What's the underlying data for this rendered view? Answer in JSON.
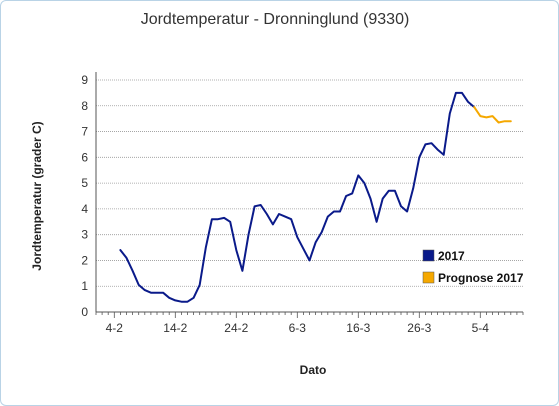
{
  "chart_data": {
    "type": "line",
    "title": "Jordtemperatur - Dronninglund (9330)",
    "xlabel": "Dato",
    "ylabel": "Jordtemperatur (grader C)",
    "ylim": [
      0,
      9
    ],
    "yticks": [
      0,
      1,
      2,
      3,
      4,
      5,
      6,
      7,
      8,
      9
    ],
    "x_tick_labels": [
      "4-2",
      "14-2",
      "24-2",
      "6-3",
      "16-3",
      "26-3",
      "5-4"
    ],
    "grid": true,
    "legend_position": "right",
    "colors": {
      "series_2017": "#0a1a8a",
      "series_prognose": "#f5a800",
      "grid": "#999999",
      "axis": "#555555",
      "frame": "#b9d3e6"
    },
    "series": [
      {
        "name": "2017",
        "x": [
          "2017-02-05",
          "2017-02-06",
          "2017-02-07",
          "2017-02-08",
          "2017-02-09",
          "2017-02-10",
          "2017-02-11",
          "2017-02-12",
          "2017-02-13",
          "2017-02-14",
          "2017-02-15",
          "2017-02-16",
          "2017-02-17",
          "2017-02-18",
          "2017-02-19",
          "2017-02-20",
          "2017-02-21",
          "2017-02-22",
          "2017-02-23",
          "2017-02-24",
          "2017-02-25",
          "2017-02-26",
          "2017-02-27",
          "2017-02-28",
          "2017-03-01",
          "2017-03-02",
          "2017-03-03",
          "2017-03-04",
          "2017-03-05",
          "2017-03-06",
          "2017-03-07",
          "2017-03-08",
          "2017-03-09",
          "2017-03-10",
          "2017-03-11",
          "2017-03-12",
          "2017-03-13",
          "2017-03-14",
          "2017-03-15",
          "2017-03-16",
          "2017-03-17",
          "2017-03-18",
          "2017-03-19",
          "2017-03-20",
          "2017-03-21",
          "2017-03-22",
          "2017-03-23",
          "2017-03-24",
          "2017-03-25",
          "2017-03-26",
          "2017-03-27",
          "2017-03-28",
          "2017-03-29",
          "2017-03-30",
          "2017-03-31",
          "2017-04-01",
          "2017-04-02",
          "2017-04-03",
          "2017-04-04"
        ],
        "values": [
          2.4,
          2.1,
          1.6,
          1.05,
          0.85,
          0.75,
          0.75,
          0.75,
          0.55,
          0.45,
          0.4,
          0.4,
          0.55,
          1.05,
          2.5,
          3.6,
          3.6,
          3.65,
          3.5,
          2.4,
          1.6,
          3.0,
          4.1,
          4.15,
          3.8,
          3.4,
          3.8,
          3.7,
          3.6,
          2.9,
          2.45,
          2.0,
          2.7,
          3.1,
          3.7,
          3.9,
          3.9,
          4.5,
          4.6,
          5.3,
          5.0,
          4.4,
          3.5,
          4.4,
          4.7,
          4.7,
          4.1,
          3.9,
          4.8,
          6.0,
          6.5,
          6.55,
          6.3,
          6.1,
          7.7,
          8.5,
          8.5,
          8.15,
          7.95
        ]
      },
      {
        "name": "Prognose 2017",
        "x": [
          "2017-04-04",
          "2017-04-05",
          "2017-04-06",
          "2017-04-07",
          "2017-04-08",
          "2017-04-09",
          "2017-04-10"
        ],
        "values": [
          7.95,
          7.6,
          7.55,
          7.6,
          7.35,
          7.4,
          7.4
        ]
      }
    ]
  }
}
